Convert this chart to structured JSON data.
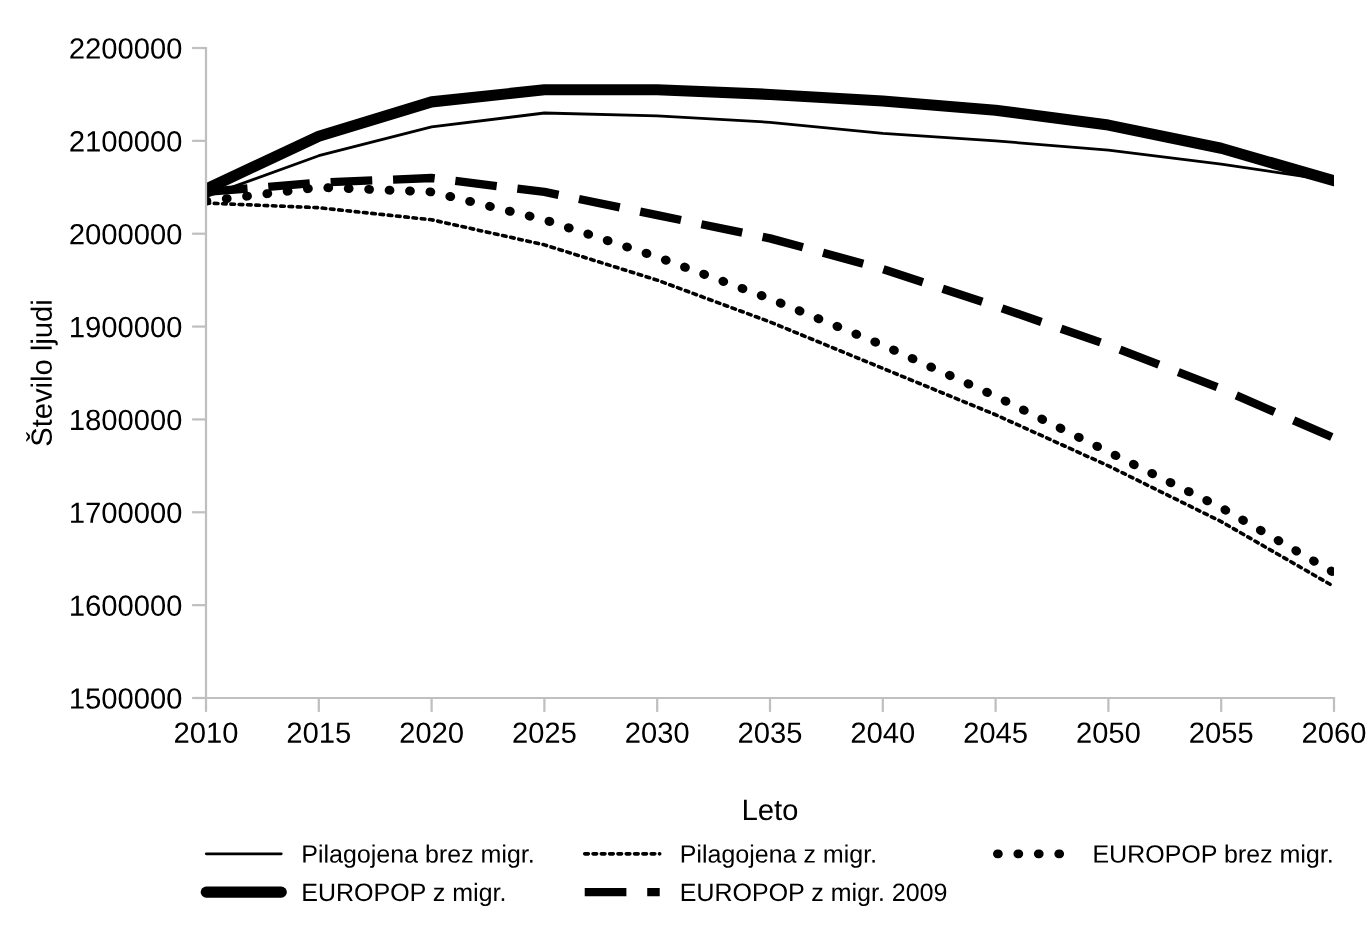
{
  "chart_data": {
    "type": "line",
    "xlabel": "Leto",
    "ylabel": "Število ljudi",
    "x": [
      2010,
      2015,
      2020,
      2025,
      2030,
      2035,
      2040,
      2045,
      2050,
      2055,
      2060
    ],
    "xlim": [
      2010,
      2060
    ],
    "xticks": [
      2010,
      2015,
      2020,
      2025,
      2030,
      2035,
      2040,
      2045,
      2050,
      2055,
      2060
    ],
    "ylim": [
      1500000,
      2200000
    ],
    "yticks": [
      1500000,
      1600000,
      1700000,
      1800000,
      1900000,
      2000000,
      2100000,
      2200000
    ],
    "grid": false,
    "legend": "bottom",
    "marker": "none",
    "series": [
      {
        "name": "Pilagojena brez migr.",
        "color": "#000000",
        "line_style": "solid",
        "values": [
          2040000,
          2084000,
          2115000,
          2130000,
          2127000,
          2120000,
          2108000,
          2100000,
          2090000,
          2075000,
          2057000
        ]
      },
      {
        "name": "Pilagojena z migr.",
        "color": "#000000",
        "line_style": "dotted",
        "values": [
          2033000,
          2028000,
          2015000,
          1988000,
          1950000,
          1905000,
          1855000,
          1805000,
          1750000,
          1690000,
          1620000
        ]
      },
      {
        "name": "EUROPOP brez migr.",
        "color": "#000000",
        "line_style": "dotted",
        "values": [
          2035000,
          2050000,
          2045000,
          2015000,
          1975000,
          1930000,
          1880000,
          1825000,
          1765000,
          1705000,
          1635000
        ]
      },
      {
        "name": "EUROPOP z migr.",
        "color": "#000000",
        "line_style": "solid",
        "values": [
          2048000,
          2105000,
          2142000,
          2155000,
          2155000,
          2150000,
          2143000,
          2133000,
          2117000,
          2092000,
          2057000
        ]
      },
      {
        "name": "EUROPOP z migr. 2009",
        "color": "#000000",
        "line_style": "dashed",
        "values": [
          2045000,
          2055000,
          2060000,
          2045000,
          2020000,
          1995000,
          1962000,
          1922000,
          1880000,
          1833000,
          1780000
        ]
      }
    ]
  }
}
